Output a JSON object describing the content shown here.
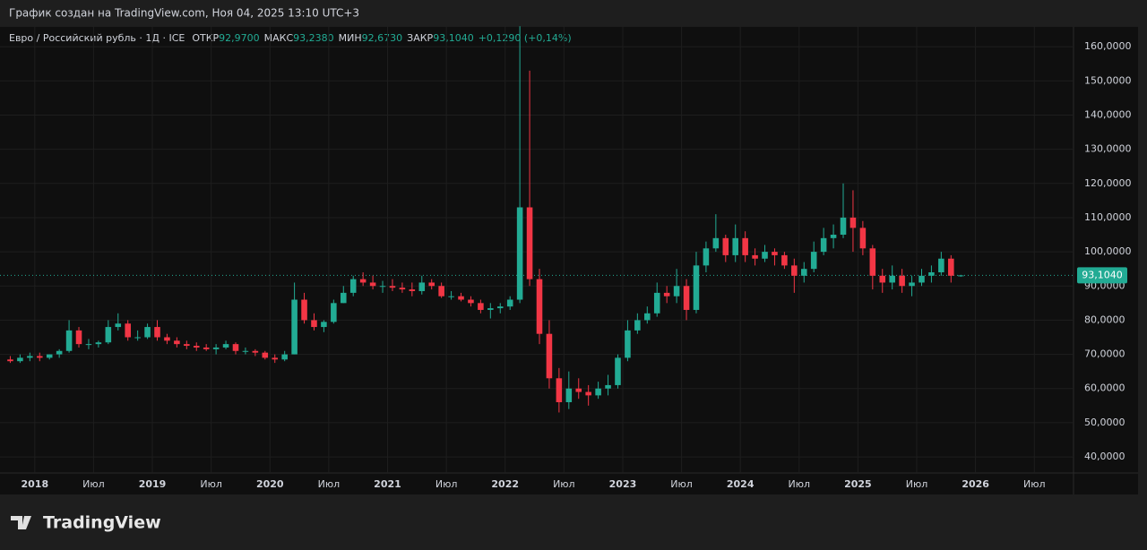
{
  "caption": "График создан на TradingView.com, Ноя 04, 2025 13:10 UTC+3",
  "logo": "TradingView",
  "chart_data": {
    "type": "candlestick",
    "title": "Евро / Российский рубль · 1Д · ICE",
    "legend": [
      {
        "label": "ОТКР",
        "value": "92,9700"
      },
      {
        "label": "МАКС",
        "value": "93,2380"
      },
      {
        "label": "МИН",
        "value": "92,6730"
      },
      {
        "label": "ЗАКР",
        "value": "93,1040"
      }
    ],
    "change": "+0,1290 (+0,14%)",
    "up_color": "#22ab94",
    "down_color": "#f23645",
    "x": [
      "2017-10",
      "2017-11",
      "2017-12",
      "2018-01",
      "2018-02",
      "2018-03",
      "2018-04",
      "2018-05",
      "2018-06",
      "2018-07",
      "2018-08",
      "2018-09",
      "2018-10",
      "2018-11",
      "2018-12",
      "2019-01",
      "2019-02",
      "2019-03",
      "2019-04",
      "2019-05",
      "2019-06",
      "2019-07",
      "2019-08",
      "2019-09",
      "2019-10",
      "2019-11",
      "2019-12",
      "2020-01",
      "2020-02",
      "2020-03",
      "2020-04",
      "2020-05",
      "2020-06",
      "2020-07",
      "2020-08",
      "2020-09",
      "2020-10",
      "2020-11",
      "2020-12",
      "2021-01",
      "2021-02",
      "2021-03",
      "2021-04",
      "2021-05",
      "2021-06",
      "2021-07",
      "2021-08",
      "2021-09",
      "2021-10",
      "2021-11",
      "2021-12",
      "2022-01",
      "2022-02",
      "2022-03",
      "2022-04",
      "2022-05",
      "2022-06",
      "2022-07",
      "2022-08",
      "2022-09",
      "2022-10",
      "2022-11",
      "2022-12",
      "2023-01",
      "2023-02",
      "2023-03",
      "2023-04",
      "2023-05",
      "2023-06",
      "2023-07",
      "2023-08",
      "2023-09",
      "2023-10",
      "2023-11",
      "2023-12",
      "2024-01",
      "2024-02",
      "2024-03",
      "2024-04",
      "2024-05",
      "2024-06",
      "2024-07",
      "2024-08",
      "2024-09",
      "2024-10",
      "2024-11",
      "2024-12",
      "2025-01",
      "2025-02",
      "2025-03",
      "2025-04",
      "2025-05",
      "2025-06",
      "2025-07",
      "2025-08",
      "2025-09",
      "2025-10",
      "2025-11"
    ],
    "open": [
      68.5,
      68,
      69,
      69.5,
      69,
      70,
      71,
      77,
      73,
      73,
      73.5,
      78,
      79,
      75,
      75,
      78,
      75,
      74,
      73,
      72.5,
      72,
      71.5,
      72,
      73,
      71,
      71,
      70.5,
      69,
      68.5,
      70,
      86,
      80,
      78,
      79.5,
      85,
      88,
      92,
      91,
      90,
      90,
      89.5,
      89,
      88.5,
      91,
      90,
      87,
      87,
      86,
      85,
      83,
      83.5,
      84,
      86,
      113,
      92,
      76,
      63,
      56,
      60,
      59,
      58,
      60,
      61,
      69,
      77,
      80,
      82,
      88,
      87,
      90,
      83,
      96,
      101,
      104,
      99,
      104,
      99,
      98,
      100,
      99,
      96,
      93,
      95,
      100,
      104,
      105,
      110,
      107,
      101,
      93,
      91,
      93,
      90,
      91,
      93,
      94,
      98,
      92.97
    ],
    "high": [
      69.5,
      70,
      70.5,
      70.5,
      70,
      71.5,
      80,
      78,
      74.5,
      74,
      80,
      82,
      80,
      77,
      79,
      80,
      76,
      75,
      74,
      73.5,
      73,
      73,
      74,
      73.5,
      72,
      71.5,
      71,
      70,
      71,
      91,
      88,
      82,
      80,
      86,
      90,
      93,
      94,
      93,
      91.5,
      92,
      91,
      91,
      93,
      92,
      91,
      88.5,
      88,
      87,
      86,
      85,
      85,
      87,
      166,
      153,
      95,
      80,
      66,
      65,
      63,
      61,
      62,
      64,
      70,
      80,
      82,
      84,
      91,
      90,
      95,
      92,
      100,
      103,
      111,
      105,
      108,
      106,
      101,
      102,
      101,
      100,
      98,
      97,
      103,
      107,
      108,
      120,
      118,
      109,
      102,
      95,
      96,
      95,
      93,
      95,
      96,
      100,
      99,
      93.238
    ],
    "low": [
      67.5,
      67.5,
      68,
      68,
      68.5,
      69,
      70.5,
      72,
      71.5,
      72,
      73,
      77,
      74,
      74,
      74.5,
      74,
      73,
      72,
      71.5,
      71,
      71,
      70,
      71.5,
      70,
      70,
      69.5,
      68.5,
      67.5,
      68,
      70,
      79,
      77,
      76.5,
      79,
      85,
      87,
      90,
      89,
      88,
      88.5,
      88,
      87,
      87.5,
      89,
      86.5,
      86,
      85.5,
      84,
      82,
      80.5,
      82,
      83,
      85,
      90,
      73,
      60,
      53,
      54,
      57,
      55,
      57,
      58,
      60,
      68,
      76,
      79,
      81,
      85,
      85,
      80,
      82,
      94,
      100,
      97,
      97,
      97,
      96,
      97,
      96,
      95,
      88,
      91,
      94,
      99,
      101,
      104,
      100,
      99,
      89,
      88,
      89,
      88,
      87,
      90,
      91,
      93,
      91,
      92.673
    ],
    "close": [
      68,
      69,
      69.5,
      69,
      70,
      71,
      77,
      73,
      73,
      73.5,
      78,
      79,
      75,
      75,
      78,
      75,
      74,
      73,
      72.5,
      72,
      71.5,
      72,
      73,
      71,
      71,
      70.5,
      69,
      68.5,
      70,
      86,
      80,
      78,
      79.5,
      85,
      88,
      92,
      91,
      90,
      90,
      89.5,
      89,
      88.5,
      91,
      90,
      87,
      87,
      86,
      85,
      83,
      83.5,
      84,
      86,
      113,
      92,
      76,
      63,
      56,
      60,
      59,
      58,
      60,
      61,
      69,
      77,
      80,
      82,
      88,
      87,
      90,
      83,
      96,
      101,
      104,
      99,
      104,
      99,
      98,
      100,
      99,
      96,
      93,
      95,
      100,
      104,
      105,
      110,
      107,
      101,
      93,
      91,
      93,
      90,
      91,
      93,
      94,
      98,
      93,
      93.104
    ],
    "xlim": [
      "2017-10",
      "2026-11"
    ],
    "xticks": [
      {
        "value": "2018-01",
        "label": "2018"
      },
      {
        "value": "2018-07",
        "label": "Июл"
      },
      {
        "value": "2019-01",
        "label": "2019"
      },
      {
        "value": "2019-07",
        "label": "Июл"
      },
      {
        "value": "2020-01",
        "label": "2020"
      },
      {
        "value": "2020-07",
        "label": "Июл"
      },
      {
        "value": "2021-01",
        "label": "2021"
      },
      {
        "value": "2021-07",
        "label": "Июл"
      },
      {
        "value": "2022-01",
        "label": "2022"
      },
      {
        "value": "2022-07",
        "label": "Июл"
      },
      {
        "value": "2023-01",
        "label": "2023"
      },
      {
        "value": "2023-07",
        "label": "Июл"
      },
      {
        "value": "2024-01",
        "label": "2024"
      },
      {
        "value": "2024-07",
        "label": "Июл"
      },
      {
        "value": "2025-01",
        "label": "2025"
      },
      {
        "value": "2025-07",
        "label": "Июл"
      },
      {
        "value": "2026-01",
        "label": "2026"
      },
      {
        "value": "2026-07",
        "label": "Июл"
      }
    ],
    "ylim": [
      35.3,
      165.8
    ],
    "yticks": [
      {
        "value": 40,
        "label": "40,0000"
      },
      {
        "value": 50,
        "label": "50,0000"
      },
      {
        "value": 60,
        "label": "60,0000"
      },
      {
        "value": 70,
        "label": "70,0000"
      },
      {
        "value": 80,
        "label": "80,0000"
      },
      {
        "value": 90,
        "label": "90,0000"
      },
      {
        "value": 100,
        "label": "100,0000"
      },
      {
        "value": 110,
        "label": "110,0000"
      },
      {
        "value": 120,
        "label": "120,0000"
      },
      {
        "value": 130,
        "label": "130,0000"
      },
      {
        "value": 140,
        "label": "140,0000"
      },
      {
        "value": 150,
        "label": "150,0000"
      },
      {
        "value": 160,
        "label": "160,0000"
      }
    ],
    "grid": true,
    "last_price": {
      "value": 93.104,
      "label": "93,1040"
    }
  }
}
